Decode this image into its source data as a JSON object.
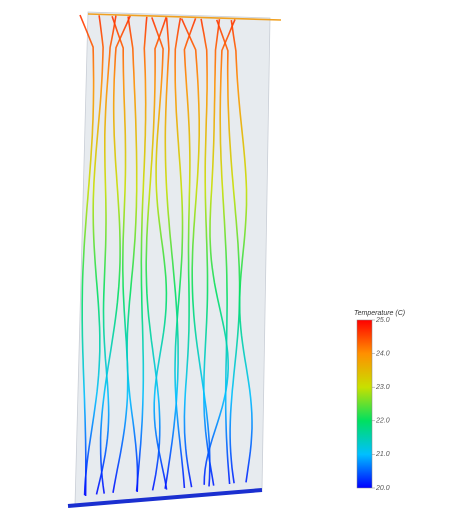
{
  "chart_data": {
    "type": "streamline",
    "colorbar": {
      "title": "Temperature (C)",
      "lim": [
        20,
        25
      ],
      "ticks": [
        {
          "value": 25,
          "label": "25.0"
        },
        {
          "value": 24,
          "label": "24.0"
        },
        {
          "value": 23,
          "label": "23.0"
        },
        {
          "value": 22,
          "label": "22.0"
        },
        {
          "value": 21,
          "label": "21.0"
        },
        {
          "value": 20,
          "label": "20.0"
        }
      ],
      "colors": [
        "#0000ff",
        "#00bfff",
        "#00e060",
        "#c8e000",
        "#ff9000",
        "#ff0000"
      ]
    }
  }
}
